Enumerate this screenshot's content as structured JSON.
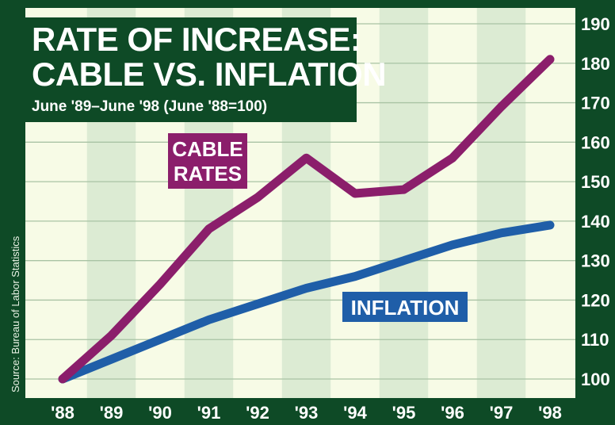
{
  "chart_data": {
    "type": "line",
    "title_lines": [
      "RATE OF INCREASE:",
      "CABLE VS. INFLATION"
    ],
    "subtitle": "June '89–June '98 (June '88=100)",
    "source": "Source: Bureau of Labor Statistics",
    "categories": [
      "'88",
      "'89",
      "'90",
      "'91",
      "'92",
      "'93",
      "'94",
      "'95",
      "'96",
      "'97",
      "'98"
    ],
    "y_ticks": [
      "100",
      "110",
      "120",
      "130",
      "140",
      "150",
      "160",
      "170",
      "180",
      "190"
    ],
    "ylim": [
      100,
      190
    ],
    "grid": true,
    "legend": "inline labels",
    "series": [
      {
        "name_lines": [
          "CABLE",
          "RATES"
        ],
        "color": "#8b1e6b",
        "values": [
          100,
          111,
          124,
          138,
          146,
          156,
          147,
          148,
          156,
          169,
          181
        ]
      },
      {
        "name_lines": [
          "INFLATION"
        ],
        "color": "#1f5ea8",
        "values": [
          100,
          105,
          110,
          115,
          119,
          123,
          126,
          130,
          134,
          137,
          139
        ]
      }
    ]
  },
  "colors": {
    "frame": "#0e4a26",
    "plot_band_light": "#f7fbe6",
    "plot_band_green": "#dcebd3",
    "grid": "#a9c3a4"
  }
}
